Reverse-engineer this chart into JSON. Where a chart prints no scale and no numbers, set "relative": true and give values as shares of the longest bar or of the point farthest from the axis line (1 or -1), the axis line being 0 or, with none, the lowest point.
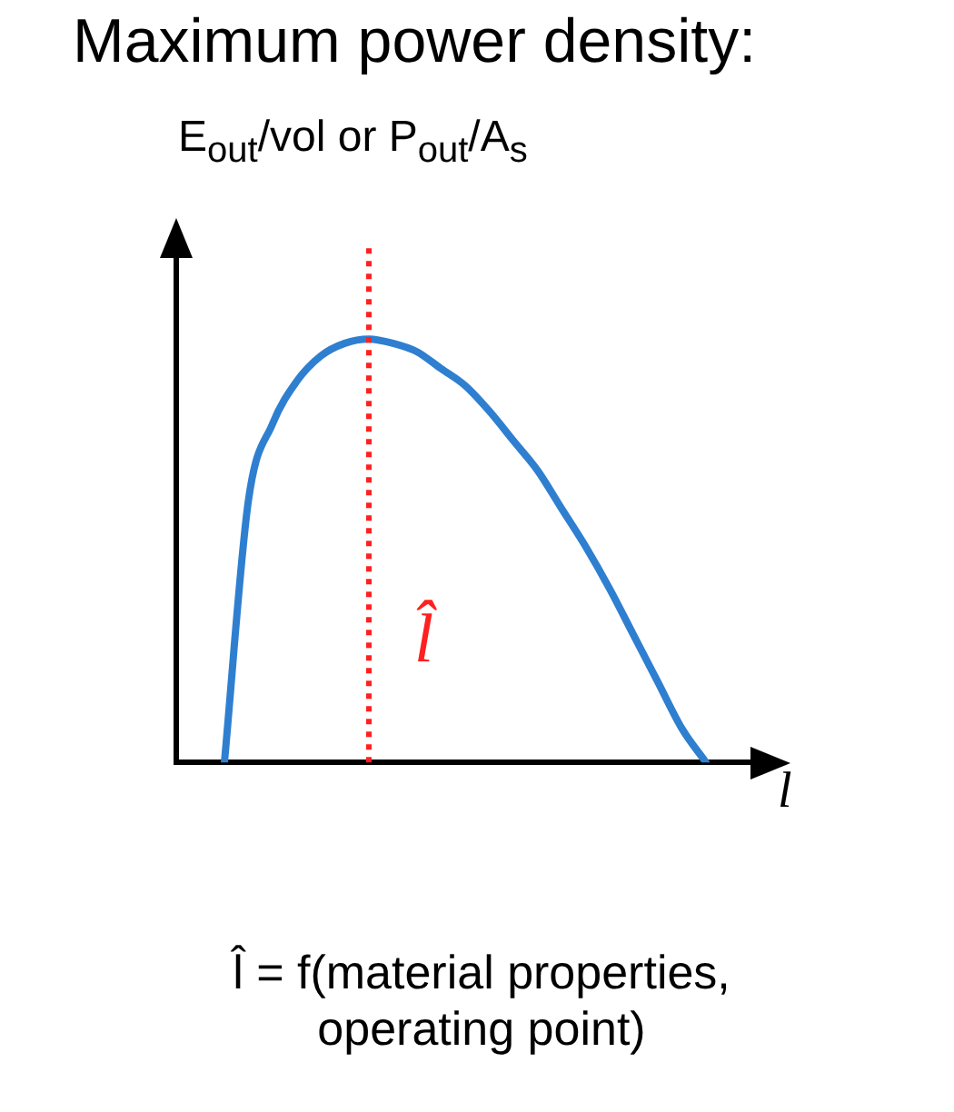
{
  "chart_data": {
    "type": "line",
    "title": "Maximum power density:",
    "ylabel": "E$_{out}$/vol or P$_{out}$/A$_{s}$",
    "xlabel": "l",
    "categories": [
      null,
      null,
      null,
      null,
      null,
      null,
      null,
      null,
      null,
      null,
      null,
      null,
      null,
      null,
      null,
      null,
      null,
      null,
      null,
      null,
      null,
      null,
      null,
      null,
      null
    ],
    "series": [
      {
        "color": "#2f7fd0",
        "values": [
          null,
          null,
          0,
          0.62,
          0.8,
          0.9,
          0.96,
          0.99,
          1,
          0.99,
          0.97,
          0.93,
          0.89,
          0.83,
          0.76,
          0.69,
          0.6,
          0.51,
          0.41,
          0.3,
          0.19,
          0.08,
          0,
          null,
          null
        ]
      }
    ],
    "relative": true,
    "grid": false,
    "legend": false,
    "marker": "none",
    "line_style": "solid",
    "annotations": [
      "l̂",
      "l̂ = f(material properties, operating point)"
    ]
  }
}
